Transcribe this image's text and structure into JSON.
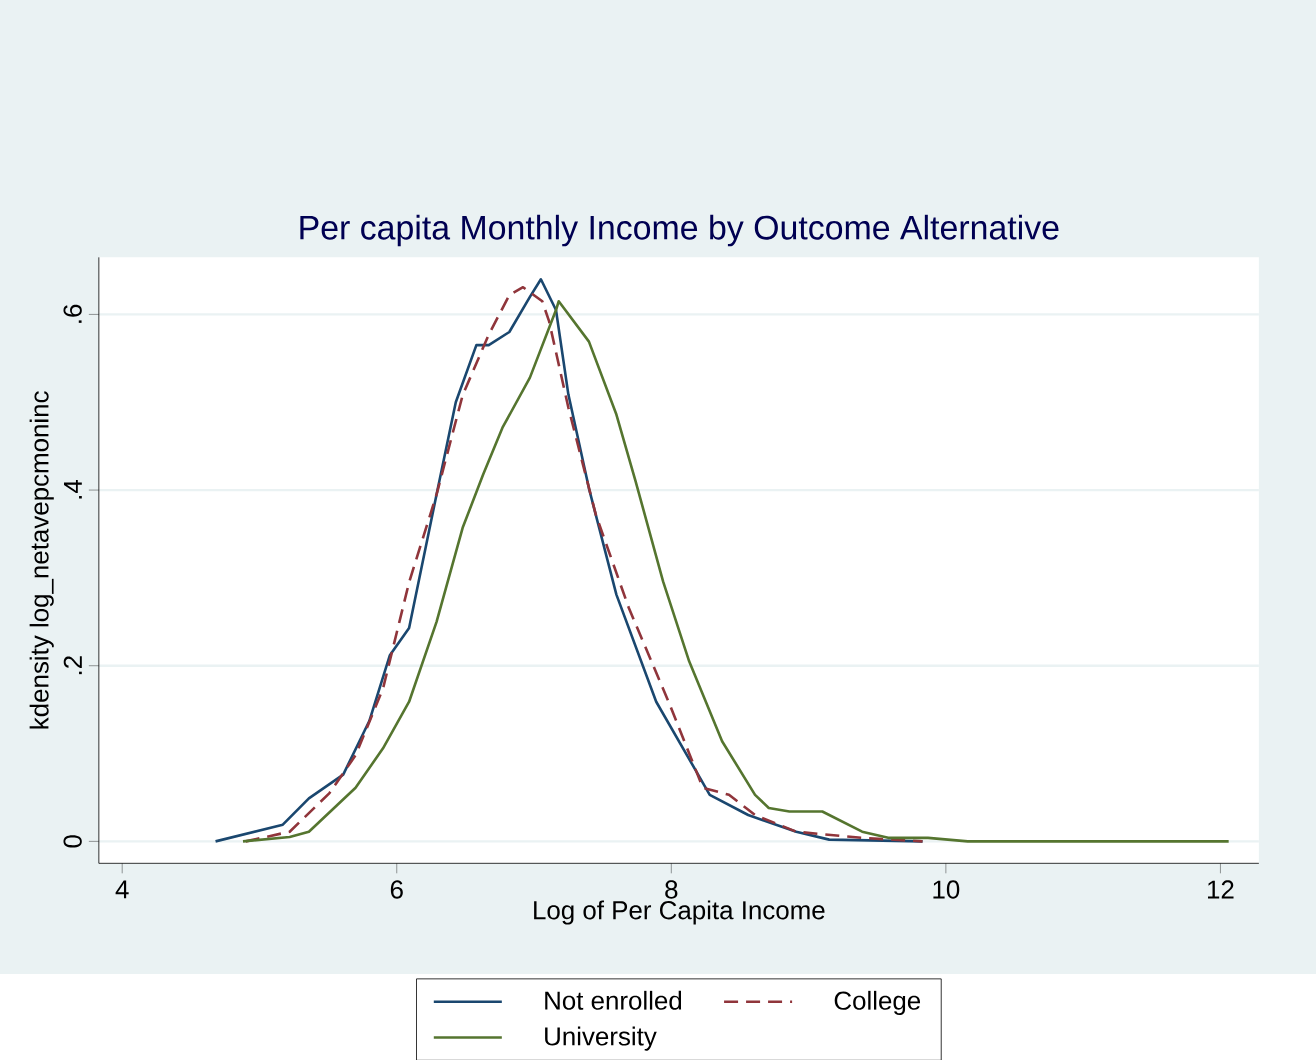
{
  "chart_data": {
    "type": "line",
    "title": "Per capita Monthly Income by Outcome Alternative",
    "xlabel": "Log of Per Capita Income",
    "ylabel": "kdensity log_netavepcmoninc",
    "xlim": [
      3.83,
      12.28
    ],
    "ylim": [
      -0.025,
      0.665
    ],
    "xticks": [
      4,
      6,
      8,
      10,
      12
    ],
    "yticks": [
      0,
      {
        "value": 0.2,
        "label": ".2"
      },
      {
        "value": 0.4,
        "label": ".4"
      },
      {
        "value": 0.6,
        "label": ".6"
      }
    ],
    "grid": "y",
    "legend": "bottom",
    "series": [
      {
        "name": "Not enrolled",
        "color": "#1a476f",
        "line_style": "solid",
        "x": [
          4.68,
          5.17,
          5.36,
          5.61,
          5.8,
          5.95,
          6.09,
          6.29,
          6.43,
          6.58,
          6.67,
          6.82,
          6.97,
          7.05,
          7.16,
          7.25,
          7.4,
          7.6,
          7.89,
          8.28,
          8.56,
          8.91,
          9.15,
          9.83
        ],
        "values": [
          0,
          0.019,
          0.049,
          0.076,
          0.137,
          0.212,
          0.243,
          0.395,
          0.5,
          0.565,
          0.565,
          0.58,
          0.62,
          0.64,
          0.605,
          0.509,
          0.402,
          0.281,
          0.159,
          0.053,
          0.03,
          0.011,
          0.002,
          0
        ]
      },
      {
        "name": "College",
        "color": "#90353b",
        "line_style": "dashed",
        "x": [
          4.9,
          5.22,
          5.51,
          5.7,
          5.9,
          6.09,
          6.29,
          6.48,
          6.67,
          6.82,
          6.92,
          7.06,
          7.11,
          7.25,
          7.45,
          7.69,
          7.98,
          8.23,
          8.42,
          8.61,
          8.91,
          9.39,
          9.83
        ],
        "values": [
          0,
          0.011,
          0.055,
          0.098,
          0.174,
          0.295,
          0.395,
          0.508,
          0.577,
          0.622,
          0.631,
          0.615,
          0.592,
          0.494,
          0.372,
          0.266,
          0.159,
          0.061,
          0.053,
          0.03,
          0.011,
          0.004,
          0
        ]
      },
      {
        "name": "University",
        "color": "#55752f",
        "line_style": "solid",
        "x": [
          4.88,
          5.22,
          5.36,
          5.7,
          5.9,
          6.09,
          6.29,
          6.48,
          6.63,
          6.77,
          6.97,
          7.16,
          7.18,
          7.4,
          7.6,
          7.74,
          7.94,
          8.13,
          8.37,
          8.61,
          8.71,
          8.86,
          9.1,
          9.39,
          9.58,
          9.87,
          10.16,
          12.06
        ],
        "values": [
          0,
          0.005,
          0.011,
          0.061,
          0.106,
          0.159,
          0.25,
          0.357,
          0.418,
          0.471,
          0.528,
          0.605,
          0.615,
          0.569,
          0.486,
          0.41,
          0.296,
          0.205,
          0.114,
          0.053,
          0.038,
          0.034,
          0.034,
          0.011,
          0.004,
          0.004,
          0,
          0
        ]
      }
    ]
  }
}
